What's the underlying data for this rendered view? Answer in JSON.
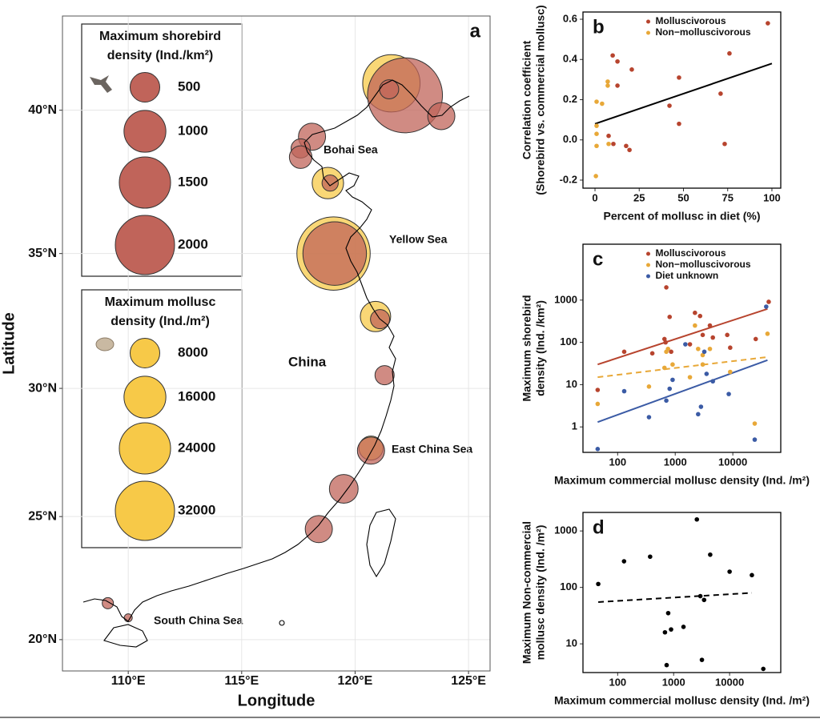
{
  "chart_data": [
    {
      "type": "map",
      "panel": "a",
      "x_label": "Longitude",
      "y_label": "Latitude",
      "xlim": [
        107.1,
        125.95
      ],
      "ylim": [
        18.7,
        43.1
      ],
      "yscale": "mercator",
      "grid": true,
      "xticks": [
        {
          "value": 110,
          "label": "110°E"
        },
        {
          "value": 115,
          "label": "115°E"
        },
        {
          "value": 120,
          "label": "120°E"
        },
        {
          "value": 125,
          "label": "125°E"
        }
      ],
      "yticks": [
        {
          "value": 20,
          "label": "20°N"
        },
        {
          "value": 25,
          "label": "25°N"
        },
        {
          "value": 30,
          "label": "30°N"
        },
        {
          "value": 35,
          "label": "35°N"
        },
        {
          "value": 40,
          "label": "40°N"
        }
      ],
      "annotations": [
        "Bohai Sea",
        "Yellow Sea",
        "China",
        "East China Sea",
        "South China Sea"
      ],
      "series": [
        {
          "name": [
            "Maximum shorebird",
            "density (Ind./km²)"
          ],
          "color": "#c0645a",
          "legend_values": [
            500,
            1000,
            1500,
            2000
          ],
          "x": [
            122.2,
            121.5,
            123.8,
            118.1,
            117.6,
            117.6,
            118.9,
            119.1,
            121.1,
            121.3,
            120.7,
            119.5,
            118.4,
            109.1,
            110.0
          ],
          "y": [
            40.5,
            40.7,
            39.8,
            39.1,
            38.7,
            38.4,
            37.5,
            35.0,
            32.6,
            30.5,
            27.6,
            26.1,
            24.5,
            21.5,
            20.9
          ],
          "values": [
            3200,
            210,
            420,
            420,
            210,
            290,
            150,
            2300,
            210,
            210,
            420,
            470,
            420,
            72,
            37
          ]
        },
        {
          "name": [
            "Maximum mollusc",
            "density (Ind./m²)"
          ],
          "color": "#f7c948",
          "legend_values": [
            8000,
            16000,
            24000,
            32000
          ],
          "x": [
            121.6,
            118.8,
            119.05,
            120.9,
            120.7
          ],
          "y": [
            40.9,
            37.5,
            35.0,
            32.7,
            27.7
          ],
          "values": [
            30000,
            9000,
            49000,
            8400,
            5300
          ]
        }
      ]
    },
    {
      "type": "scatter",
      "panel": "b",
      "x_label": "Percent of mollusc in diet (%)",
      "y_label": [
        "Correlation coefficient",
        "(Shorebird vs. commercial mollusc)"
      ],
      "xlim": [
        -6.8,
        105
      ],
      "ylim": [
        -0.24,
        0.636
      ],
      "xticks": [
        0,
        25,
        50,
        75,
        100
      ],
      "yticks": [
        -0.2,
        {
          "value": 0,
          "label": "0.0"
        },
        0.2,
        0.4,
        0.6
      ],
      "legend": "top",
      "series": [
        {
          "name": "Molluscivorous",
          "color": "#b7442e",
          "x": [
            97.7,
            76,
            47.5,
            10,
            12.7,
            12.7,
            20.8,
            42.1,
            47.5,
            71,
            73.3,
            7.7,
            10.4,
            17.6,
            19.5
          ],
          "values": [
            0.58,
            0.43,
            0.31,
            0.42,
            0.39,
            0.27,
            0.35,
            0.17,
            0.08,
            0.23,
            -0.02,
            0.02,
            -0.02,
            -0.03,
            -0.05
          ]
        },
        {
          "name": "Non−molluscivorous",
          "color": "#e8a838",
          "x": [
            0.9,
            4,
            7.2,
            7.2,
            0.9,
            0.9,
            0.9,
            7.7,
            0.5
          ],
          "values": [
            0.19,
            0.18,
            0.29,
            0.27,
            0.07,
            0.03,
            -0.03,
            -0.02,
            -0.18
          ]
        }
      ],
      "fit_lines": [
        {
          "color": "#000000",
          "x": [
            0,
            100
          ],
          "values": [
            0.08,
            0.38
          ]
        }
      ]
    },
    {
      "type": "scatter",
      "panel": "c",
      "x_label": "Maximum commercial mollusc density (Ind. /m²)",
      "y_label": [
        "Maximum shorebird",
        "density (Ind. /km²)"
      ],
      "xscale": "log",
      "yscale": "log",
      "xlim": [
        25,
        68000
      ],
      "ylim": [
        0.25,
        21000
      ],
      "xticks": [
        100,
        1000,
        10000
      ],
      "yticks": [
        1,
        10,
        100,
        1000
      ],
      "legend": "top",
      "series": [
        {
          "name": "Molluscivorous",
          "color": "#b7442e",
          "x": [
            45,
            130,
            400,
            650,
            680,
            700,
            800,
            850,
            1800,
            2200,
            2700,
            3000,
            4000,
            4500,
            8000,
            9000,
            25000,
            42000
          ],
          "values": [
            7.5,
            60,
            55,
            120,
            100,
            2000,
            400,
            60,
            90,
            500,
            420,
            150,
            250,
            130,
            150,
            75,
            120,
            910
          ]
        },
        {
          "name": "Non−molluscivorous",
          "color": "#e8a838",
          "x": [
            45,
            350,
            650,
            700,
            750,
            900,
            1800,
            2200,
            2500,
            3000,
            3000,
            4000,
            9000,
            24000,
            40000
          ],
          "values": [
            3.5,
            9,
            25,
            60,
            70,
            30,
            15,
            250,
            70,
            30,
            50,
            70,
            20,
            1.2,
            160
          ]
        },
        {
          "name": "Diet unknown",
          "color": "#3b5ba5",
          "x": [
            45,
            130,
            350,
            700,
            800,
            900,
            1500,
            2500,
            2800,
            3200,
            3500,
            4500,
            8500,
            24000,
            38000
          ],
          "values": [
            0.3,
            7,
            1.7,
            4.2,
            8,
            13,
            90,
            2,
            3,
            60,
            18,
            12,
            6,
            0.5,
            700
          ]
        }
      ],
      "fit_lines": [
        {
          "color": "#b7442e",
          "x": [
            45,
            40000
          ],
          "values": [
            30,
            620
          ]
        },
        {
          "color": "#e8a838",
          "line_style": "dashed",
          "x": [
            45,
            40000
          ],
          "values": [
            15,
            45
          ]
        },
        {
          "color": "#3b5ba5",
          "x": [
            45,
            40000
          ],
          "values": [
            1.3,
            38
          ]
        }
      ]
    },
    {
      "type": "scatter",
      "panel": "d",
      "x_label": "Maximum commercial mollusc density (Ind. /m²)",
      "y_label": [
        "Maximum Non-commercial",
        "mollusc density (Ind. /m²)"
      ],
      "xscale": "log",
      "yscale": "log",
      "xlim": [
        24,
        82000
      ],
      "ylim": [
        3.1,
        2130
      ],
      "xticks": [
        100,
        1000,
        10000
      ],
      "yticks": [
        10,
        100,
        1000
      ],
      "series": [
        {
          "color": "#000000",
          "x": [
            45,
            130,
            380,
            700,
            750,
            800,
            900,
            1500,
            2600,
            3200,
            3000,
            3500,
            4500,
            10000,
            25000,
            40000
          ],
          "values": [
            115,
            290,
            350,
            16,
            4.2,
            35,
            18,
            20,
            1600,
            5.2,
            70,
            60,
            380,
            190,
            165,
            3.6
          ]
        }
      ],
      "fit_lines": [
        {
          "color": "#000000",
          "line_style": "dashed",
          "x": [
            45,
            25000
          ],
          "values": [
            55,
            80
          ]
        }
      ]
    }
  ]
}
